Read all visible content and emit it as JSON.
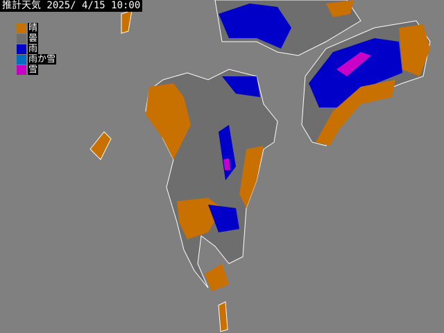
{
  "header": {
    "title": "推計天気 2025/ 4/15 10:00"
  },
  "legend": {
    "items": [
      {
        "label": "晴"
      },
      {
        "label": "曇"
      },
      {
        "label": "雨"
      },
      {
        "label": "雨か雪"
      },
      {
        "label": "雪"
      }
    ]
  }
}
